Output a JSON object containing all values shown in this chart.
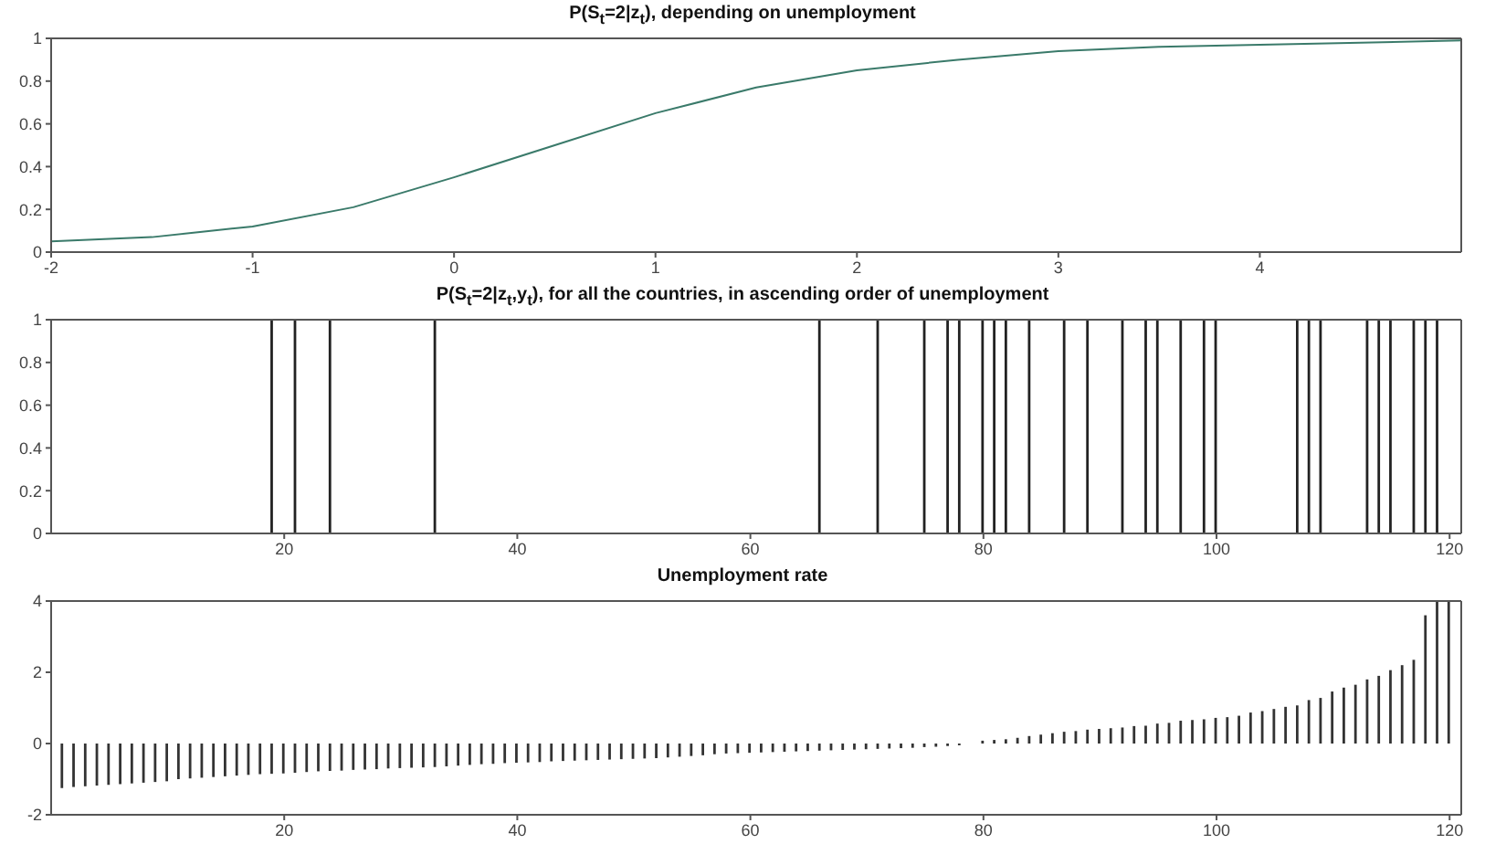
{
  "chart_data": [
    {
      "type": "line",
      "title": "P(S$_{t}$=2|z$_{t}$), depending on unemployment",
      "x": [
        -2,
        -1.5,
        -1,
        -0.5,
        0,
        0.5,
        1,
        1.5,
        2,
        2.5,
        3,
        3.5,
        4,
        4.5,
        5
      ],
      "series": [
        {
          "color": "#3a7a6a",
          "values": [
            0.05,
            0.07,
            0.12,
            0.21,
            0.35,
            0.5,
            0.65,
            0.77,
            0.85,
            0.9,
            0.94,
            0.96,
            0.97,
            0.98,
            0.99
          ]
        }
      ],
      "xlim": [
        -2,
        5
      ],
      "xticks": [
        -2,
        -1,
        0,
        1,
        2,
        3,
        4
      ],
      "ylim": [
        0,
        1
      ],
      "yticks": [
        0,
        0.2,
        0.4,
        0.6,
        0.8,
        1
      ]
    },
    {
      "type": "bar",
      "title": "P(S$_{t}$=2|z$_{t}$,y$_{t}$), for all the countries, in ascending order of unemployment",
      "x": [
        1,
        2,
        3,
        4,
        5,
        6,
        7,
        8,
        9,
        10,
        11,
        12,
        13,
        14,
        15,
        16,
        17,
        18,
        19,
        20,
        21,
        22,
        23,
        24,
        25,
        26,
        27,
        28,
        29,
        30,
        31,
        32,
        33,
        34,
        35,
        36,
        37,
        38,
        39,
        40,
        41,
        42,
        43,
        44,
        45,
        46,
        47,
        48,
        49,
        50,
        51,
        52,
        53,
        54,
        55,
        56,
        57,
        58,
        59,
        60,
        61,
        62,
        63,
        64,
        65,
        66,
        67,
        68,
        69,
        70,
        71,
        72,
        73,
        74,
        75,
        76,
        77,
        78,
        79,
        80,
        81,
        82,
        83,
        84,
        85,
        86,
        87,
        88,
        89,
        90,
        91,
        92,
        93,
        94,
        95,
        96,
        97,
        98,
        99,
        100,
        101,
        102,
        103,
        104,
        105,
        106,
        107,
        108,
        109,
        110,
        111,
        112,
        113,
        114,
        115,
        116,
        117,
        118,
        119,
        120
      ],
      "values": [
        0,
        0,
        0,
        0,
        0,
        0,
        0,
        0,
        0,
        0,
        0,
        0,
        0,
        0,
        0,
        0,
        0,
        0,
        1,
        0,
        1,
        0,
        0,
        1,
        0,
        0,
        0,
        0,
        0,
        0,
        0,
        0,
        1,
        0,
        0,
        0,
        0,
        0,
        0,
        0,
        0,
        0,
        0,
        0,
        0,
        0,
        0,
        0,
        0,
        0,
        0,
        0,
        0,
        0,
        0,
        0,
        0,
        0,
        0,
        0,
        0,
        0,
        0,
        0,
        0,
        1,
        0,
        0,
        0,
        0,
        1,
        0,
        0,
        0,
        1,
        0,
        1,
        1,
        0,
        1,
        1,
        1,
        0,
        1,
        0,
        0,
        1,
        0,
        1,
        0,
        0,
        1,
        0,
        1,
        1,
        0,
        1,
        0,
        1,
        1,
        0,
        0,
        0,
        0,
        0,
        0,
        1,
        1,
        1,
        0,
        0,
        0,
        1,
        1,
        1,
        0,
        1,
        1,
        1,
        0
      ],
      "color": "#222222",
      "xlim": [
        0,
        121
      ],
      "xticks": [
        20,
        40,
        60,
        80,
        100,
        120
      ],
      "ylim": [
        0,
        1
      ],
      "yticks": [
        0,
        0.2,
        0.4,
        0.6,
        0.8,
        1
      ]
    },
    {
      "type": "bar",
      "title": "Unemployment rate",
      "x": [
        1,
        2,
        3,
        4,
        5,
        6,
        7,
        8,
        9,
        10,
        11,
        12,
        13,
        14,
        15,
        16,
        17,
        18,
        19,
        20,
        21,
        22,
        23,
        24,
        25,
        26,
        27,
        28,
        29,
        30,
        31,
        32,
        33,
        34,
        35,
        36,
        37,
        38,
        39,
        40,
        41,
        42,
        43,
        44,
        45,
        46,
        47,
        48,
        49,
        50,
        51,
        52,
        53,
        54,
        55,
        56,
        57,
        58,
        59,
        60,
        61,
        62,
        63,
        64,
        65,
        66,
        67,
        68,
        69,
        70,
        71,
        72,
        73,
        74,
        75,
        76,
        77,
        78,
        79,
        80,
        81,
        82,
        83,
        84,
        85,
        86,
        87,
        88,
        89,
        90,
        91,
        92,
        93,
        94,
        95,
        96,
        97,
        98,
        99,
        100,
        101,
        102,
        103,
        104,
        105,
        106,
        107,
        108,
        109,
        110,
        111,
        112,
        113,
        114,
        115,
        116,
        117,
        118,
        119,
        120
      ],
      "values": [
        -1.25,
        -1.22,
        -1.2,
        -1.18,
        -1.16,
        -1.14,
        -1.12,
        -1.1,
        -1.08,
        -1.06,
        -1.0,
        -0.98,
        -0.96,
        -0.94,
        -0.92,
        -0.9,
        -0.88,
        -0.86,
        -0.85,
        -0.84,
        -0.82,
        -0.8,
        -0.78,
        -0.77,
        -0.76,
        -0.74,
        -0.73,
        -0.72,
        -0.7,
        -0.69,
        -0.68,
        -0.67,
        -0.66,
        -0.64,
        -0.62,
        -0.6,
        -0.58,
        -0.57,
        -0.55,
        -0.54,
        -0.53,
        -0.52,
        -0.5,
        -0.49,
        -0.48,
        -0.47,
        -0.46,
        -0.45,
        -0.44,
        -0.43,
        -0.42,
        -0.41,
        -0.39,
        -0.37,
        -0.35,
        -0.33,
        -0.3,
        -0.28,
        -0.27,
        -0.26,
        -0.25,
        -0.24,
        -0.23,
        -0.22,
        -0.21,
        -0.2,
        -0.19,
        -0.18,
        -0.17,
        -0.16,
        -0.15,
        -0.14,
        -0.13,
        -0.12,
        -0.1,
        -0.09,
        -0.07,
        -0.05,
        null,
        0.08,
        0.1,
        0.12,
        0.16,
        0.21,
        0.25,
        0.29,
        0.33,
        0.35,
        0.39,
        0.41,
        0.43,
        0.45,
        0.49,
        0.5,
        0.56,
        0.58,
        0.64,
        0.66,
        0.68,
        0.72,
        0.74,
        0.78,
        0.87,
        0.91,
        0.97,
        1.03,
        1.07,
        1.22,
        1.28,
        1.46,
        1.57,
        1.65,
        1.8,
        1.9,
        2.06,
        2.2,
        2.35,
        3.6,
        4,
        4
      ],
      "color": "#333333",
      "xlim": [
        0,
        121
      ],
      "xticks": [
        20,
        40,
        60,
        80,
        100,
        120
      ],
      "ylim": [
        -2,
        4
      ],
      "yticks": [
        -2,
        0,
        2,
        4
      ]
    }
  ]
}
